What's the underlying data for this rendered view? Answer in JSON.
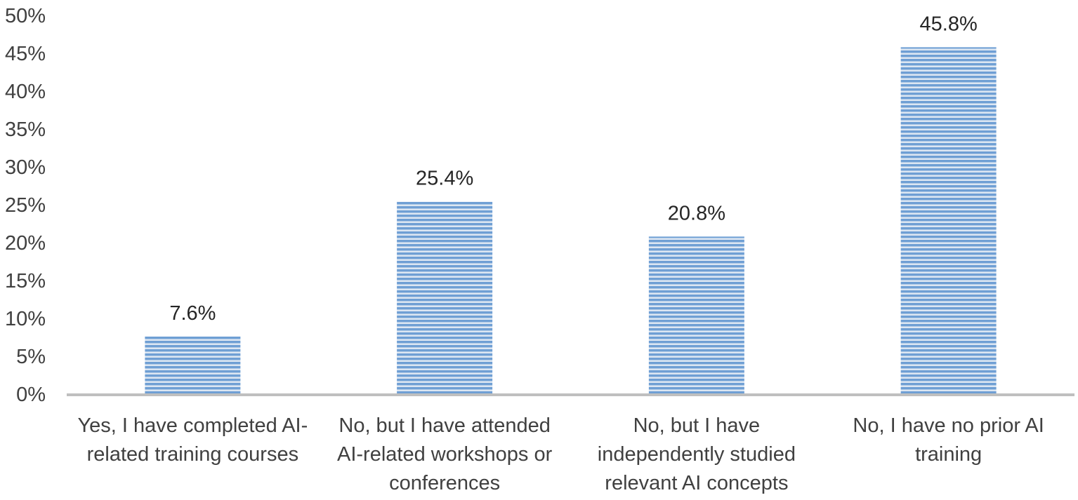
{
  "chart_data": {
    "type": "bar",
    "title": "",
    "xlabel": "",
    "ylabel": "",
    "categories": [
      [
        "Yes, I have completed AI-",
        "related training courses"
      ],
      [
        "No, but I have attended",
        "AI-related workshops or",
        "conferences"
      ],
      [
        "No, but I have",
        "independently studied",
        "relevant AI concepts"
      ],
      [
        "No, I have no prior AI",
        "training"
      ]
    ],
    "values": [
      7.6,
      25.4,
      20.8,
      45.8
    ],
    "data_labels": [
      "7.6%",
      "25.4%",
      "20.8%",
      "45.8%"
    ],
    "ylim": [
      0,
      50
    ],
    "yticks": [
      0,
      5,
      10,
      15,
      20,
      25,
      30,
      35,
      40,
      45,
      50
    ],
    "ytick_labels": [
      "0%",
      "5%",
      "10%",
      "15%",
      "20%",
      "25%",
      "30%",
      "35%",
      "40%",
      "45%",
      "50%"
    ],
    "grid": false,
    "legend": "none",
    "colors": {
      "bar_fill": "#8db3e2",
      "bar_stripe": "#4f81bd",
      "bar_highlight": "#dce6f2",
      "axis_line": "#bfbfbf"
    }
  }
}
